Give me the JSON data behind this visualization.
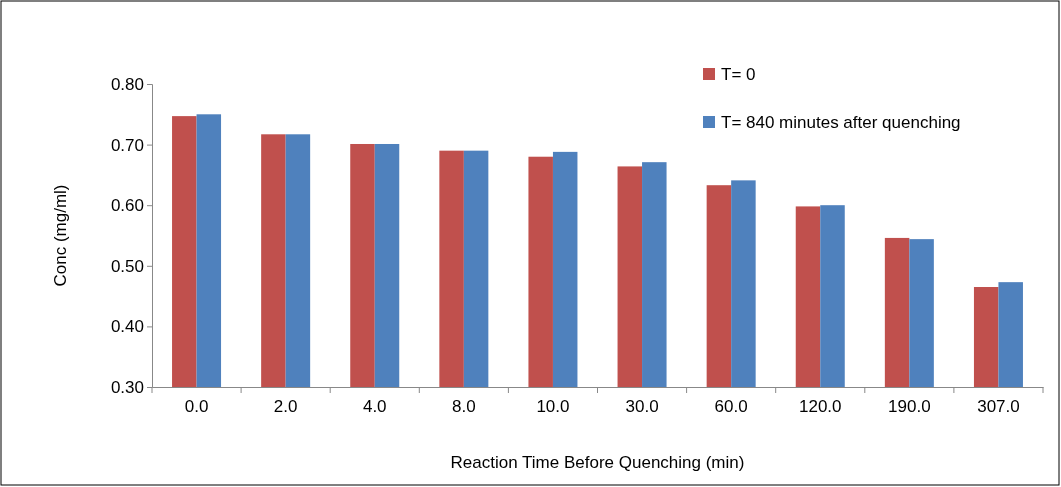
{
  "chart_data": {
    "type": "bar",
    "xlabel": "Reaction Time Before Quenching (min)",
    "ylabel": "Conc (mg/ml)",
    "categories": [
      "0.0",
      "2.0",
      "4.0",
      "8.0",
      "10.0",
      "30.0",
      "60.0",
      "120.0",
      "190.0",
      "307.0"
    ],
    "series": [
      {
        "name": "T= 0",
        "color": "#c0504d",
        "values": [
          0.747,
          0.717,
          0.701,
          0.69,
          0.68,
          0.664,
          0.633,
          0.598,
          0.546,
          0.465
        ]
      },
      {
        "name": "T= 840 minutes after quenching",
        "color": "#4f81bd",
        "values": [
          0.75,
          0.717,
          0.701,
          0.69,
          0.688,
          0.671,
          0.641,
          0.6,
          0.544,
          0.473
        ]
      }
    ],
    "ylim": [
      0.3,
      0.8
    ],
    "yticks": [
      {
        "value": 0.3,
        "label": "0.30"
      },
      {
        "value": 0.4,
        "label": "0.40"
      },
      {
        "value": 0.5,
        "label": "0.50"
      },
      {
        "value": 0.6,
        "label": "0.60"
      },
      {
        "value": 0.7,
        "label": "0.70"
      },
      {
        "value": 0.8,
        "label": "0.80"
      }
    ],
    "grid": false,
    "legend": "top right"
  }
}
